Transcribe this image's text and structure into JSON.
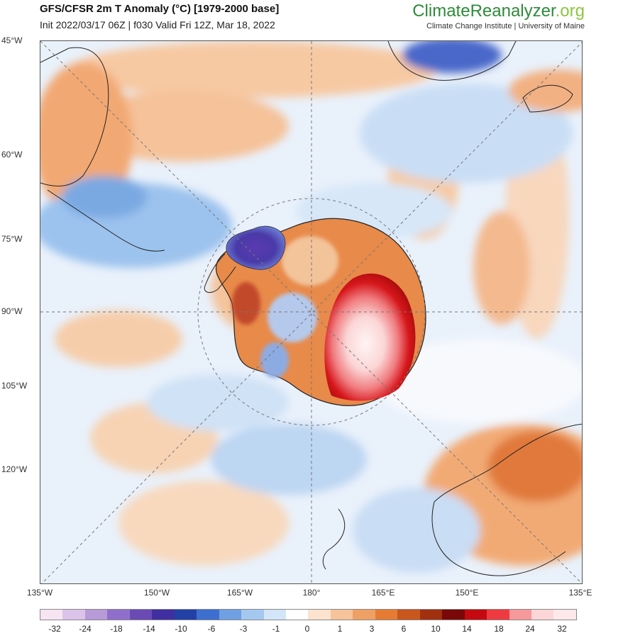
{
  "header": {
    "title": "GFS/CFSR 2m T Anomaly (°C) [1979-2000 base]",
    "subtitle": "Init 2022/03/17 06Z | f030 Valid Fri 12Z, Mar 18, 2022"
  },
  "brand": {
    "name_part1": "ClimateReanalyzer",
    "name_part2": ".org",
    "tagline": "Climate Change Institute | University of Maine"
  },
  "map": {
    "lat_labels": [
      "45°W",
      "60°W",
      "75°W",
      "90°W",
      "105°W",
      "120°W"
    ],
    "lon_labels": [
      "135°W",
      "150°W",
      "165°W",
      "180°",
      "165°E",
      "150°E",
      "135°E"
    ]
  },
  "colorbar": {
    "labels": [
      "-32",
      "-24",
      "-18",
      "-14",
      "-10",
      "-6",
      "-3",
      "-1",
      "0",
      "1",
      "3",
      "6",
      "10",
      "14",
      "18",
      "24",
      "32"
    ],
    "colors": [
      "#f7e4f3",
      "#dcc3ea",
      "#b89ad9",
      "#8f6fcb",
      "#6b4ab5",
      "#3f2fa0",
      "#2340a6",
      "#3c6fd0",
      "#6fa0e3",
      "#a5c8f0",
      "#d3e5f8",
      "#ffffff",
      "#fbe3cf",
      "#f6c39a",
      "#efa065",
      "#e67c33",
      "#c9561d",
      "#a1300f",
      "#7a0808",
      "#c40a10",
      "#ee3a40",
      "#f7989a",
      "#fcd6d6",
      "#fde9ea"
    ]
  }
}
